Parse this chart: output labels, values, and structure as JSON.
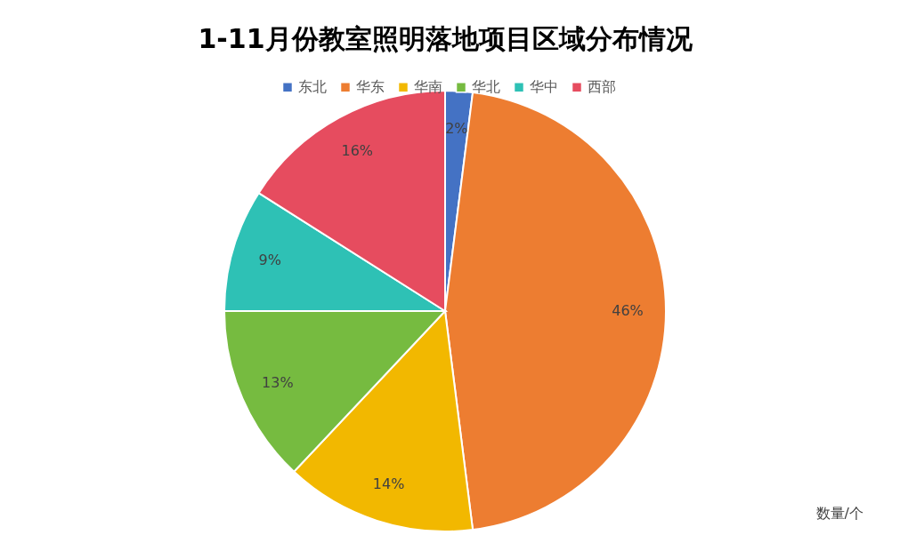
{
  "chart_data": {
    "type": "pie",
    "title": "1-11月份教室照明落地项目区域分布情况",
    "categories": [
      "东北",
      "华东",
      "华南",
      "华北",
      "华中",
      "西部"
    ],
    "values": [
      2,
      46,
      14,
      13,
      9,
      16
    ],
    "colors": [
      "#4472c4",
      "#ed7d31",
      "#f2b800",
      "#76bb40",
      "#2ec1b5",
      "#e64c5f"
    ],
    "value_labels": [
      "2%",
      "46%",
      "14%",
      "13%",
      "9%",
      "16%"
    ],
    "legend": "top",
    "annotations": [
      "数量/个"
    ]
  }
}
